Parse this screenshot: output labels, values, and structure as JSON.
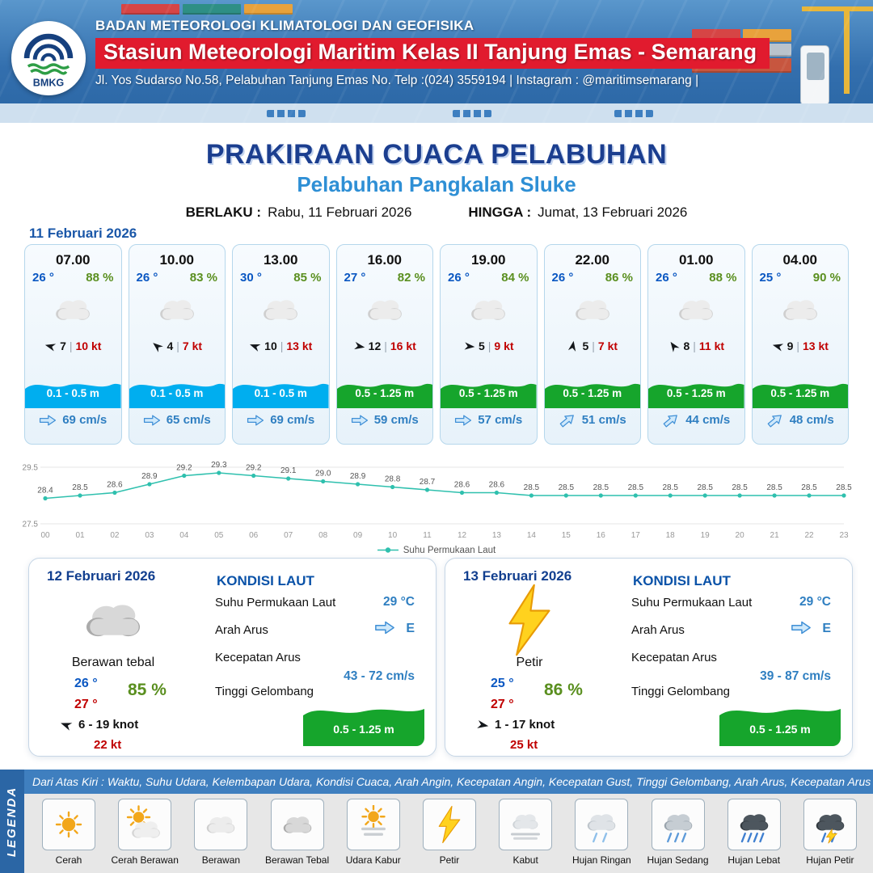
{
  "header": {
    "agency": "BADAN METEOROLOGI KLIMATOLOGI DAN GEOFISIKA",
    "station": "Stasiun Meteorologi Maritim Kelas II Tanjung Emas - Semarang",
    "address": "Jl. Yos Sudarso No.58, Pelabuhan Tanjung Emas No. Telp :(024) 3559194 | Instagram : @maritimsemarang |",
    "logo_text": "BMKG"
  },
  "title": {
    "main": "PRAKIRAAN CUACA PELABUHAN",
    "port": "Pelabuhan Pangkalan Sluke",
    "valid_from_label": "BERLAKU :",
    "valid_from": "Rabu, 11 Februari 2026",
    "valid_to_label": "HINGGA :",
    "valid_to": "Jumat, 13 Februari 2026"
  },
  "forecast": {
    "date_label": "11 Februari 2026",
    "separator": "|",
    "cards": [
      {
        "time": "07.00",
        "temp": "26 °",
        "humidity": "88 %",
        "weather": "berawan",
        "wind_speed": "7",
        "wind_gust": "10 kt",
        "wind_dir_deg": 195,
        "wave": "0.1 - 0.5 m",
        "wave_color": "cyan",
        "current": "69 cm/s",
        "current_dir_deg": 0
      },
      {
        "time": "10.00",
        "temp": "26 °",
        "humidity": "83 %",
        "weather": "berawan",
        "wind_speed": "4",
        "wind_gust": "7 kt",
        "wind_dir_deg": 220,
        "wave": "0.1 - 0.5 m",
        "wave_color": "cyan",
        "current": "65 cm/s",
        "current_dir_deg": 0
      },
      {
        "time": "13.00",
        "temp": "30 °",
        "humidity": "85 %",
        "weather": "berawan",
        "wind_speed": "10",
        "wind_gust": "13 kt",
        "wind_dir_deg": 200,
        "wave": "0.1 - 0.5 m",
        "wave_color": "cyan",
        "current": "69 cm/s",
        "current_dir_deg": 0
      },
      {
        "time": "16.00",
        "temp": "27 °",
        "humidity": "82 %",
        "weather": "berawan",
        "wind_speed": "12",
        "wind_gust": "16 kt",
        "wind_dir_deg": 10,
        "wave": "0.5 - 1.25 m",
        "wave_color": "green",
        "current": "59 cm/s",
        "current_dir_deg": 0
      },
      {
        "time": "19.00",
        "temp": "26 °",
        "humidity": "84 %",
        "weather": "berawan",
        "wind_speed": "5",
        "wind_gust": "9 kt",
        "wind_dir_deg": 5,
        "wave": "0.5 - 1.25 m",
        "wave_color": "green",
        "current": "57 cm/s",
        "current_dir_deg": 0
      },
      {
        "time": "22.00",
        "temp": "26 °",
        "humidity": "86 %",
        "weather": "berawan",
        "wind_speed": "5",
        "wind_gust": "7 kt",
        "wind_dir_deg": 280,
        "wave": "0.5 - 1.25 m",
        "wave_color": "green",
        "current": "51 cm/s",
        "current_dir_deg": -40
      },
      {
        "time": "01.00",
        "temp": "26 °",
        "humidity": "88 %",
        "weather": "berawan",
        "wind_speed": "8",
        "wind_gust": "11 kt",
        "wind_dir_deg": 235,
        "wave": "0.5 - 1.25 m",
        "wave_color": "green",
        "current": "44 cm/s",
        "current_dir_deg": -40
      },
      {
        "time": "04.00",
        "temp": "25 °",
        "humidity": "90 %",
        "weather": "berawan",
        "wind_speed": "9",
        "wind_gust": "13 kt",
        "wind_dir_deg": 195,
        "wave": "0.5 - 1.25 m",
        "wave_color": "green",
        "current": "48 cm/s",
        "current_dir_deg": -40
      }
    ]
  },
  "chart_data": {
    "type": "line",
    "series_name": "Suhu Permukaan Laut",
    "x": [
      "00",
      "01",
      "02",
      "03",
      "04",
      "05",
      "06",
      "07",
      "08",
      "09",
      "10",
      "11",
      "12",
      "13",
      "14",
      "15",
      "16",
      "17",
      "18",
      "19",
      "20",
      "21",
      "22",
      "23"
    ],
    "values": [
      28.4,
      28.5,
      28.6,
      28.9,
      29.2,
      29.3,
      29.2,
      29.1,
      29.0,
      28.9,
      28.8,
      28.7,
      28.6,
      28.6,
      28.5,
      28.5,
      28.5,
      28.5,
      28.5,
      28.5,
      28.5,
      28.5,
      28.5,
      28.5
    ],
    "ylim": [
      27.5,
      29.5
    ],
    "yticks": [
      29.5,
      27.5
    ],
    "xlabel": "",
    "ylabel": "",
    "line_color": "#2fc0ae",
    "grid": true,
    "legend_position": "bottom"
  },
  "sea_days": [
    {
      "date": "12 Februari 2026",
      "condition": "Berawan tebal",
      "icon": "berawan-tebal",
      "temp_min": "26 °",
      "temp_max": "27 °",
      "humidity": "85 %",
      "wind_range": "6 - 19 knot",
      "wind_gust": "22 kt",
      "wind_dir_deg": 200,
      "sea_title": "KONDISI LAUT",
      "sst_label": "Suhu Permukaan Laut",
      "sst": "29 °C",
      "current_dir_label": "Arah Arus",
      "current_dir": "E",
      "current_speed_label": "Kecepatan Arus",
      "current_speed": "43 - 72 cm/s",
      "wave_label": "Tinggi Gelombang",
      "wave": "0.5 - 1.25 m"
    },
    {
      "date": "13 Februari 2026",
      "condition": "Petir",
      "icon": "petir",
      "temp_min": "25 °",
      "temp_max": "27 °",
      "humidity": "86 %",
      "wind_range": "1 - 17 knot",
      "wind_gust": "25 kt",
      "wind_dir_deg": 10,
      "sea_title": "KONDISI LAUT",
      "sst_label": "Suhu Permukaan Laut",
      "sst": "29 °C",
      "current_dir_label": "Arah Arus",
      "current_dir": "E",
      "current_speed_label": "Kecepatan Arus",
      "current_speed": "39 - 87 cm/s",
      "wave_label": "Tinggi Gelombang",
      "wave": "0.5 - 1.25 m"
    }
  ],
  "legend": {
    "title": "LEGENDA",
    "caption": "Dari Atas Kiri : Waktu, Suhu Udara, Kelembapan Udara, Kondisi Cuaca, Arah Angin, Kecepatan Angin, Kecepatan Gust, Tinggi Gelombang, Arah Arus, Kecepatan Arus",
    "items": [
      {
        "label": "Cerah",
        "icon": "cerah"
      },
      {
        "label": "Cerah Berawan",
        "icon": "cerah-berawan"
      },
      {
        "label": "Berawan",
        "icon": "berawan"
      },
      {
        "label": "Berawan Tebal",
        "icon": "berawan-tebal"
      },
      {
        "label": "Udara Kabur",
        "icon": "udara-kabur"
      },
      {
        "label": "Petir",
        "icon": "petir"
      },
      {
        "label": "Kabut",
        "icon": "kabut"
      },
      {
        "label": "Hujan Ringan",
        "icon": "hujan-ringan"
      },
      {
        "label": "Hujan Sedang",
        "icon": "hujan-sedang"
      },
      {
        "label": "Hujan Lebat",
        "icon": "hujan-lebat"
      },
      {
        "label": "Hujan Petir",
        "icon": "hujan-petir"
      }
    ]
  },
  "colors": {
    "title_blue": "#1b3e8f",
    "port_blue": "#2e8fd5",
    "temp_blue": "#0a57c2",
    "humidity_green": "#5a8f1f",
    "gust_red": "#c00000",
    "wave_cyan": "#00aeef",
    "wave_green": "#16a52c",
    "line_teal": "#2fc0ae",
    "header_red": "#e11b2e"
  }
}
